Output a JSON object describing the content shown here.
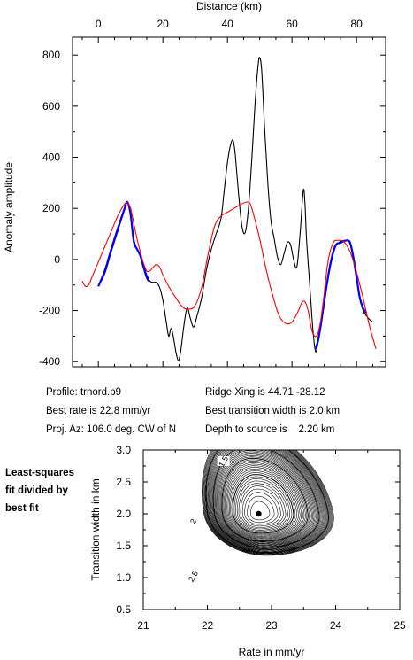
{
  "chart_data": [
    {
      "type": "line",
      "xlabel": "Distance (km)",
      "ylabel": "Anomaly amplitude",
      "xlim": [
        -8,
        89
      ],
      "ylim": [
        -420,
        870
      ],
      "x_ticks": [
        0,
        20,
        40,
        60,
        80
      ],
      "y_ticks": [
        -400,
        -200,
        0,
        200,
        400,
        600,
        800
      ],
      "series": [
        {
          "color": "#000000",
          "role": "observed",
          "points": [
            [
              0,
              -105
            ],
            [
              2,
              -55
            ],
            [
              4,
              30
            ],
            [
              6,
              110
            ],
            [
              8,
              190
            ],
            [
              9,
              225
            ],
            [
              10,
              180
            ],
            [
              11,
              80
            ],
            [
              12,
              40
            ],
            [
              13,
              20
            ],
            [
              14,
              -20
            ],
            [
              15,
              -60
            ],
            [
              16,
              -85
            ],
            [
              17,
              -90
            ],
            [
              18,
              -90
            ],
            [
              19,
              -110
            ],
            [
              20,
              -160
            ],
            [
              21,
              -240
            ],
            [
              21.8,
              -300
            ],
            [
              22.5,
              -270
            ],
            [
              23.2,
              -300
            ],
            [
              24,
              -360
            ],
            [
              24.8,
              -395
            ],
            [
              25.5,
              -360
            ],
            [
              26.5,
              -260
            ],
            [
              27.5,
              -190
            ],
            [
              28.5,
              -230
            ],
            [
              29.5,
              -265
            ],
            [
              30.5,
              -225
            ],
            [
              32,
              -150
            ],
            [
              33.5,
              -40
            ],
            [
              35,
              40
            ],
            [
              36.5,
              100
            ],
            [
              38,
              160
            ],
            [
              39,
              270
            ],
            [
              40,
              380
            ],
            [
              41,
              450
            ],
            [
              41.8,
              465
            ],
            [
              42.5,
              400
            ],
            [
              43.5,
              250
            ],
            [
              44.5,
              130
            ],
            [
              45.5,
              105
            ],
            [
              46.5,
              200
            ],
            [
              47.5,
              380
            ],
            [
              48.5,
              600
            ],
            [
              49.5,
              760
            ],
            [
              50,
              790
            ],
            [
              50.6,
              740
            ],
            [
              51.5,
              520
            ],
            [
              52.5,
              300
            ],
            [
              53.5,
              150
            ],
            [
              54.5,
              80
            ],
            [
              55.5,
              10
            ],
            [
              56.5,
              -20
            ],
            [
              57.5,
              20
            ],
            [
              58.5,
              65
            ],
            [
              59.5,
              60
            ],
            [
              60.5,
              0
            ],
            [
              61.5,
              -30
            ],
            [
              62.5,
              100
            ],
            [
              63.5,
              270
            ],
            [
              64,
              220
            ],
            [
              64.5,
              80
            ],
            [
              65.5,
              -100
            ],
            [
              66.5,
              -280
            ],
            [
              67.3,
              -360
            ],
            [
              68,
              -330
            ],
            [
              69,
              -260
            ],
            [
              70.5,
              -130
            ],
            [
              72,
              -20
            ],
            [
              73.5,
              50
            ],
            [
              75,
              70
            ],
            [
              77,
              75
            ],
            [
              78,
              60
            ],
            [
              79,
              0
            ],
            [
              80,
              -80
            ],
            [
              81,
              -150
            ],
            [
              82,
              -200
            ],
            [
              83,
              -220
            ],
            [
              84,
              -235
            ],
            [
              85,
              -245
            ]
          ]
        },
        {
          "color": "#0000ff",
          "role": "fitted-segment",
          "points": [
            [
              0,
              -105
            ],
            [
              2,
              -45
            ],
            [
              4,
              40
            ],
            [
              6,
              120
            ],
            [
              8,
              195
            ],
            [
              9,
              225
            ],
            [
              10,
              175
            ],
            [
              11,
              70
            ],
            [
              12,
              40
            ],
            [
              13,
              15
            ],
            [
              14,
              -30
            ],
            [
              15,
              -70
            ],
            [
              15.6,
              -85
            ]
          ]
        },
        {
          "color": "#0000ff",
          "role": "fitted-segment",
          "points": [
            [
              67.3,
              -350
            ],
            [
              68,
              -320
            ],
            [
              69,
              -250
            ],
            [
              70.5,
              -120
            ],
            [
              72,
              -10
            ],
            [
              73.5,
              55
            ],
            [
              75,
              65
            ],
            [
              77,
              75
            ],
            [
              78,
              65
            ],
            [
              79,
              10
            ],
            [
              80,
              -70
            ],
            [
              81,
              -150
            ],
            [
              82,
              -190
            ],
            [
              83,
              -210
            ]
          ]
        },
        {
          "color": "#ff0000",
          "role": "model",
          "points": [
            [
              -5,
              -85
            ],
            [
              -4,
              -105
            ],
            [
              -3,
              -100
            ],
            [
              -2,
              -70
            ],
            [
              0,
              -10
            ],
            [
              2,
              50
            ],
            [
              4,
              110
            ],
            [
              6,
              170
            ],
            [
              8,
              215
            ],
            [
              9,
              222
            ],
            [
              10,
              200
            ],
            [
              11,
              140
            ],
            [
              12,
              80
            ],
            [
              13,
              30
            ],
            [
              14,
              -15
            ],
            [
              15,
              -45
            ],
            [
              16,
              -45
            ],
            [
              17,
              -30
            ],
            [
              18,
              -20
            ],
            [
              19,
              -30
            ],
            [
              20,
              -60
            ],
            [
              22,
              -110
            ],
            [
              24,
              -150
            ],
            [
              26,
              -185
            ],
            [
              28,
              -195
            ],
            [
              30,
              -180
            ],
            [
              32,
              -110
            ],
            [
              34,
              20
            ],
            [
              36,
              130
            ],
            [
              38,
              170
            ],
            [
              40,
              185
            ],
            [
              42,
              200
            ],
            [
              44,
              215
            ],
            [
              46,
              225
            ],
            [
              47,
              220
            ],
            [
              48,
              180
            ],
            [
              50,
              80
            ],
            [
              52,
              -40
            ],
            [
              54,
              -140
            ],
            [
              56,
              -220
            ],
            [
              58,
              -250
            ],
            [
              60,
              -245
            ],
            [
              62,
              -200
            ],
            [
              63,
              -170
            ],
            [
              64,
              -165
            ],
            [
              65,
              -200
            ],
            [
              66,
              -270
            ],
            [
              67,
              -300
            ],
            [
              68,
              -290
            ],
            [
              69,
              -230
            ],
            [
              70,
              -130
            ],
            [
              71,
              -20
            ],
            [
              72,
              40
            ],
            [
              73,
              70
            ],
            [
              74,
              75
            ],
            [
              76,
              70
            ],
            [
              78,
              30
            ],
            [
              80,
              -50
            ],
            [
              82,
              -150
            ],
            [
              84,
              -260
            ],
            [
              86,
              -350
            ]
          ]
        }
      ]
    },
    {
      "type": "contour",
      "xlabel": "Rate in mm/yr",
      "ylabel": "Transition width in km",
      "xlim": [
        21,
        25
      ],
      "ylim": [
        0.5,
        3.0
      ],
      "x_ticks": [
        21,
        22,
        23,
        24,
        25
      ],
      "y_ticks": [
        0.5,
        1.0,
        1.5,
        2.0,
        2.5,
        3.0
      ],
      "best_fit": {
        "x": 22.8,
        "y": 2.0
      },
      "contour_levels": [
        1.05,
        1.1,
        1.15,
        1.2,
        1.25,
        1.3,
        1.35,
        1.4,
        1.45,
        1.5,
        1.55,
        1.6,
        1.65,
        1.7,
        1.75,
        1.8,
        1.85,
        1.9,
        1.95,
        2.0,
        2.05,
        2.1,
        2.15,
        2.2,
        2.25,
        2.3,
        2.35,
        2.4,
        2.45,
        2.5,
        2.55,
        2.6,
        2.65,
        2.7,
        2.75,
        2.8,
        2.85,
        2.9,
        2.95,
        3.0,
        3.05,
        3.1,
        3.15,
        3.2,
        3.25,
        3.3
      ],
      "contour_labels": [
        {
          "text": "1.5",
          "x": 22.25,
          "y": 2.82
        },
        {
          "text": "2",
          "x": 21.78,
          "y": 1.88
        },
        {
          "text": "2.5",
          "x": 21.78,
          "y": 1.02
        }
      ]
    }
  ],
  "info": {
    "profile": "Profile: trnord.p9",
    "rate": "Best rate is 22.8 mm/yr",
    "azimuth": "Proj. Az: 106.0 deg. CW of N",
    "ridge": "Ridge Xing is 44.71 -28.12",
    "transition": "Best transition width is 2.0 km",
    "depth": "Depth to source is    2.20 km"
  },
  "side_note": [
    "Least-squares",
    "fit divided by",
    "best fit"
  ]
}
